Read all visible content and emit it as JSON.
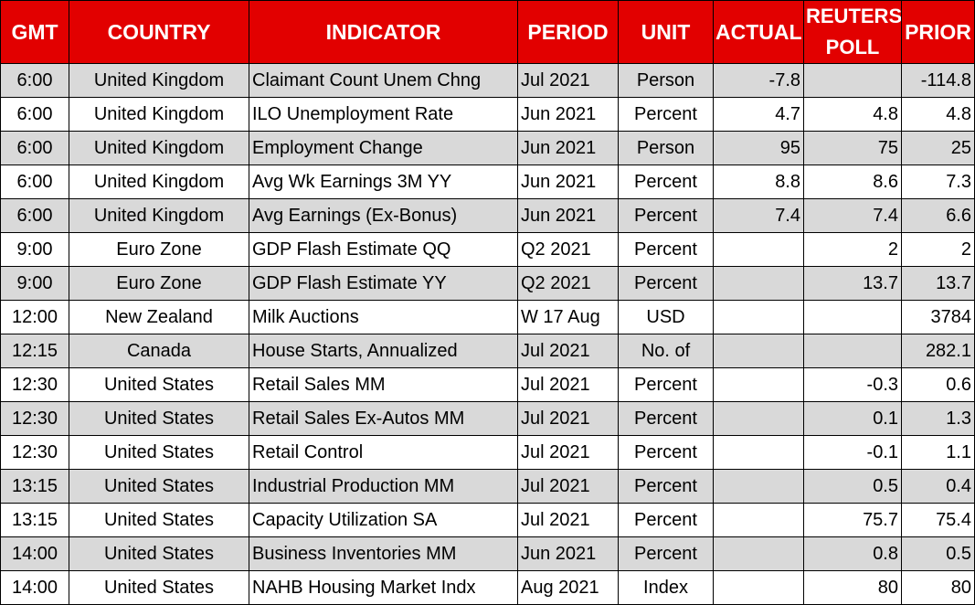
{
  "colors": {
    "header_bg": "#e20000",
    "header_text": "#ffffff",
    "row_alt": "#d9d9d9",
    "row": "#ffffff"
  },
  "headers": {
    "gmt": "GMT",
    "country": "COUNTRY",
    "indicator": "INDICATOR",
    "period": "PERIOD",
    "unit": "UNIT",
    "actual": "ACTUAL",
    "poll_line1": "REUTERS",
    "poll_line2": "POLL",
    "prior": "PRIOR"
  },
  "rows": [
    {
      "gmt": "6:00",
      "country": "United Kingdom",
      "indicator": "Claimant Count Unem Chng",
      "period": "Jul 2021",
      "unit": "Person",
      "actual": "-7.8",
      "poll": "",
      "prior": "-114.8"
    },
    {
      "gmt": "6:00",
      "country": "United Kingdom",
      "indicator": "ILO Unemployment Rate",
      "period": "Jun 2021",
      "unit": "Percent",
      "actual": "4.7",
      "poll": "4.8",
      "prior": "4.8"
    },
    {
      "gmt": "6:00",
      "country": "United Kingdom",
      "indicator": "Employment Change",
      "period": "Jun 2021",
      "unit": "Person",
      "actual": "95",
      "poll": "75",
      "prior": "25"
    },
    {
      "gmt": "6:00",
      "country": "United Kingdom",
      "indicator": "Avg Wk Earnings 3M YY",
      "period": "Jun 2021",
      "unit": "Percent",
      "actual": "8.8",
      "poll": "8.6",
      "prior": "7.3"
    },
    {
      "gmt": "6:00",
      "country": "United Kingdom",
      "indicator": "Avg Earnings (Ex-Bonus)",
      "period": "Jun 2021",
      "unit": "Percent",
      "actual": "7.4",
      "poll": "7.4",
      "prior": "6.6"
    },
    {
      "gmt": "9:00",
      "country": "Euro Zone",
      "indicator": "GDP Flash Estimate QQ",
      "period": "Q2 2021",
      "unit": "Percent",
      "actual": "",
      "poll": "2",
      "prior": "2"
    },
    {
      "gmt": "9:00",
      "country": "Euro Zone",
      "indicator": "GDP Flash Estimate YY",
      "period": "Q2 2021",
      "unit": "Percent",
      "actual": "",
      "poll": "13.7",
      "prior": "13.7"
    },
    {
      "gmt": "12:00",
      "country": "New Zealand",
      "indicator": "Milk Auctions",
      "period": "W 17 Aug",
      "unit": "USD",
      "actual": "",
      "poll": "",
      "prior": "3784"
    },
    {
      "gmt": "12:15",
      "country": "Canada",
      "indicator": "House Starts, Annualized",
      "period": "Jul 2021",
      "unit": "No. of",
      "actual": "",
      "poll": "",
      "prior": "282.1"
    },
    {
      "gmt": "12:30",
      "country": "United States",
      "indicator": "Retail Sales MM",
      "period": "Jul 2021",
      "unit": "Percent",
      "actual": "",
      "poll": "-0.3",
      "prior": "0.6"
    },
    {
      "gmt": "12:30",
      "country": "United States",
      "indicator": "Retail Sales Ex-Autos MM",
      "period": "Jul 2021",
      "unit": "Percent",
      "actual": "",
      "poll": "0.1",
      "prior": "1.3"
    },
    {
      "gmt": "12:30",
      "country": "United States",
      "indicator": "Retail Control",
      "period": "Jul 2021",
      "unit": "Percent",
      "actual": "",
      "poll": "-0.1",
      "prior": "1.1"
    },
    {
      "gmt": "13:15",
      "country": "United States",
      "indicator": "Industrial Production MM",
      "period": "Jul 2021",
      "unit": "Percent",
      "actual": "",
      "poll": "0.5",
      "prior": "0.4"
    },
    {
      "gmt": "13:15",
      "country": "United States",
      "indicator": "Capacity Utilization SA",
      "period": "Jul 2021",
      "unit": "Percent",
      "actual": "",
      "poll": "75.7",
      "prior": "75.4"
    },
    {
      "gmt": "14:00",
      "country": "United States",
      "indicator": "Business Inventories MM",
      "period": "Jun 2021",
      "unit": "Percent",
      "actual": "",
      "poll": "0.8",
      "prior": "0.5"
    },
    {
      "gmt": "14:00",
      "country": "United States",
      "indicator": "NAHB Housing Market Indx",
      "period": "Aug 2021",
      "unit": "Index",
      "actual": "",
      "poll": "80",
      "prior": "80"
    }
  ]
}
